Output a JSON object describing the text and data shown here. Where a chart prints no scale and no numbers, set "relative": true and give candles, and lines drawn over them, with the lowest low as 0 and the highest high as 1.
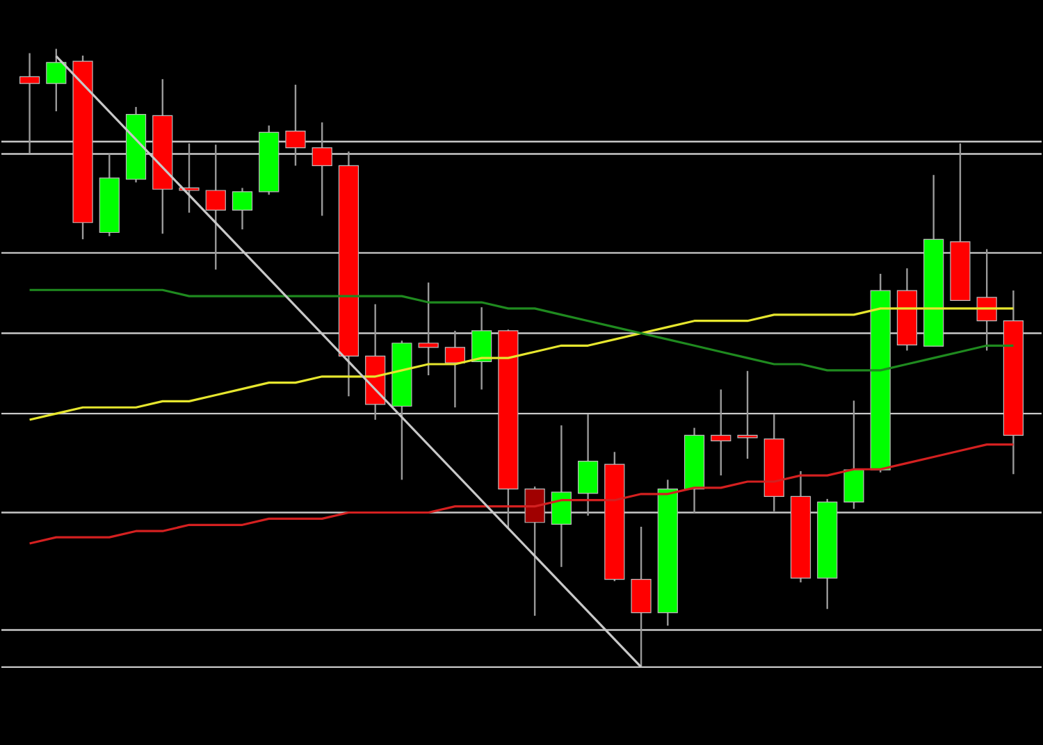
{
  "chart_data": {
    "type": "candlestick",
    "relative": true,
    "categories": [
      null,
      null,
      null,
      null,
      null,
      null,
      null,
      null,
      null,
      null,
      null,
      null,
      null,
      null,
      null,
      null,
      null,
      null,
      null,
      null,
      null,
      null,
      null,
      null,
      null,
      null,
      null,
      null,
      null,
      null,
      null,
      null,
      null,
      null,
      null,
      null,
      null,
      null
    ],
    "ohlc": [
      [
        0.955,
        0.993,
        0.831,
        0.944
      ],
      [
        0.944,
        1.0,
        0.899,
        0.978
      ],
      [
        0.98,
        0.989,
        0.692,
        0.719
      ],
      [
        0.703,
        0.831,
        0.697,
        0.791
      ],
      [
        0.789,
        0.906,
        0.784,
        0.894
      ],
      [
        0.892,
        0.951,
        0.701,
        0.773
      ],
      [
        0.775,
        0.847,
        0.735,
        0.771
      ],
      [
        0.771,
        0.845,
        0.643,
        0.739
      ],
      [
        0.739,
        0.775,
        0.708,
        0.769
      ],
      [
        0.769,
        0.876,
        0.764,
        0.865
      ],
      [
        0.867,
        0.942,
        0.811,
        0.84
      ],
      [
        0.84,
        0.881,
        0.73,
        0.811
      ],
      [
        0.811,
        0.834,
        0.438,
        0.503
      ],
      [
        0.503,
        0.587,
        0.4,
        0.425
      ],
      [
        0.422,
        0.528,
        0.303,
        0.524
      ],
      [
        0.524,
        0.622,
        0.472,
        0.517
      ],
      [
        0.517,
        0.544,
        0.42,
        0.492
      ],
      [
        0.494,
        0.582,
        0.449,
        0.544
      ],
      [
        0.544,
        0.546,
        0.225,
        0.288
      ],
      [
        0.288,
        0.292,
        0.083,
        0.234
      ],
      [
        0.231,
        0.391,
        0.162,
        0.283
      ],
      [
        0.281,
        0.409,
        0.245,
        0.333
      ],
      [
        0.328,
        0.348,
        0.139,
        0.142
      ],
      [
        0.142,
        0.227,
        0,
        0.088
      ],
      [
        0.088,
        0.303,
        0.067,
        0.288
      ],
      [
        0.288,
        0.387,
        0.249,
        0.375
      ],
      [
        0.375,
        0.449,
        0.31,
        0.366
      ],
      [
        0.375,
        0.479,
        0.337,
        0.371
      ],
      [
        0.369,
        0.409,
        0.252,
        0.276
      ],
      [
        0.276,
        0.317,
        0.137,
        0.144
      ],
      [
        0.144,
        0.272,
        0.094,
        0.267
      ],
      [
        0.267,
        0.431,
        0.256,
        0.319
      ],
      [
        0.319,
        0.636,
        0.315,
        0.609
      ],
      [
        0.609,
        0.645,
        0.512,
        0.521
      ],
      [
        0.519,
        0.796,
        0.519,
        0.692
      ],
      [
        0.688,
        0.847,
        0.593,
        0.593
      ],
      [
        0.598,
        0.676,
        0.512,
        0.56
      ],
      [
        0.56,
        0.609,
        0.312,
        0.375
      ]
    ],
    "colors": [
      "#ff0000",
      "#00ff00",
      "#ff0000",
      "#00ff00",
      "#00ff00",
      "#ff0000",
      "#ff0000",
      "#ff0000",
      "#00ff00",
      "#00ff00",
      "#ff0000",
      "#ff0000",
      "#ff0000",
      "#ff0000",
      "#00ff00",
      "#ff0000",
      "#ff0000",
      "#00ff00",
      "#ff0000",
      "#a00000",
      "#00ff00",
      "#00ff00",
      "#ff0000",
      "#ff0000",
      "#00ff00",
      "#00ff00",
      "#ff0000",
      "#ff0000",
      "#ff0000",
      "#ff0000",
      "#00ff00",
      "#00ff00",
      "#00ff00",
      "#ff0000",
      "#00ff00",
      "#ff0000",
      "#ff0000",
      "#ff0000"
    ],
    "series": [
      {
        "type": "line",
        "color": "#e6e62e",
        "values": [
          0.4,
          0.41,
          0.42,
          0.42,
          0.42,
          0.43,
          0.43,
          0.44,
          0.45,
          0.46,
          0.46,
          0.47,
          0.47,
          0.47,
          0.48,
          0.49,
          0.49,
          0.5,
          0.5,
          0.51,
          0.52,
          0.52,
          0.53,
          0.54,
          0.55,
          0.56,
          0.56,
          0.56,
          0.57,
          0.57,
          0.57,
          0.57,
          0.58,
          0.58,
          0.58,
          0.58,
          0.58,
          0.58
        ]
      },
      {
        "type": "line",
        "color": "#1f8a1f",
        "values": [
          0.61,
          0.61,
          0.61,
          0.61,
          0.61,
          0.61,
          0.6,
          0.6,
          0.6,
          0.6,
          0.6,
          0.6,
          0.6,
          0.6,
          0.6,
          0.59,
          0.59,
          0.59,
          0.58,
          0.58,
          0.57,
          0.56,
          0.55,
          0.54,
          0.53,
          0.52,
          0.51,
          0.5,
          0.49,
          0.49,
          0.48,
          0.48,
          0.48,
          0.49,
          0.5,
          0.51,
          0.52,
          0.52
        ]
      },
      {
        "type": "line",
        "color": "#d42020",
        "values": [
          0.2,
          0.21,
          0.21,
          0.21,
          0.22,
          0.22,
          0.23,
          0.23,
          0.23,
          0.24,
          0.24,
          0.24,
          0.25,
          0.25,
          0.25,
          0.25,
          0.26,
          0.26,
          0.26,
          0.26,
          0.27,
          0.27,
          0.27,
          0.28,
          0.28,
          0.29,
          0.29,
          0.3,
          0.3,
          0.31,
          0.31,
          0.32,
          0.32,
          0.33,
          0.34,
          0.35,
          0.36,
          0.36
        ]
      },
      {
        "type": "line",
        "color": "#c8c8c8",
        "values": [
          null,
          0.988,
          null,
          null,
          null,
          null,
          null,
          null,
          null,
          null,
          null,
          null,
          null,
          null,
          null,
          null,
          null,
          null,
          null,
          null,
          null,
          null,
          null,
          0,
          null,
          null,
          null,
          null,
          null,
          null,
          null,
          null,
          null,
          null,
          null,
          null,
          null,
          null
        ]
      }
    ],
    "ref_lines": [
      {
        "axis": "y",
        "value": 0.85,
        "color": "#c8c8c8"
      },
      {
        "axis": "y",
        "value": 0.83,
        "color": "#c8c8c8"
      },
      {
        "axis": "y",
        "value": 0.67,
        "color": "#c8c8c8"
      },
      {
        "axis": "y",
        "value": 0.54,
        "color": "#c8c8c8"
      },
      {
        "axis": "y",
        "value": 0.41,
        "color": "#c8c8c8"
      },
      {
        "axis": "y",
        "value": 0.25,
        "color": "#c8c8c8"
      },
      {
        "axis": "y",
        "value": 0.06,
        "color": "#c8c8c8"
      },
      {
        "axis": "y",
        "value": 0,
        "color": "#c8c8c8"
      }
    ]
  }
}
